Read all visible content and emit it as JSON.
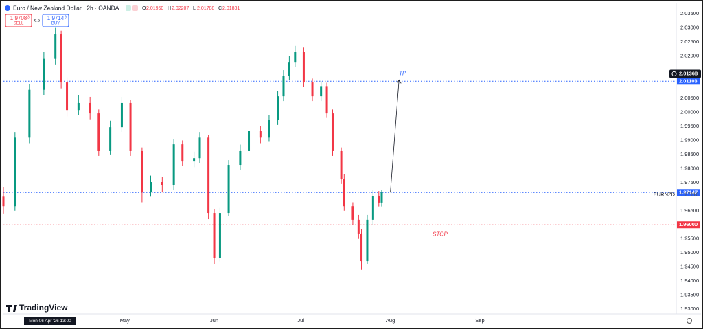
{
  "chart_data": {
    "type": "candlestick",
    "header": {
      "symbol": "Euro / New Zealand Dollar · 2h · OANDA",
      "ohlc": [
        {
          "key": "O",
          "value": "2.01950"
        },
        {
          "key": "H",
          "value": "2.02207"
        },
        {
          "key": "L",
          "value": "2.01788"
        },
        {
          "key": "C",
          "value": "2.01831"
        }
      ],
      "sell": {
        "price": "1.9708",
        "pip": "3",
        "label": "SELL"
      },
      "spread": "6.6",
      "buy": {
        "price": "1.9714",
        "pip": "9",
        "label": "BUY"
      }
    },
    "brand": "TradingView",
    "cursor_label": "Mon 06 Apr '26   13:00",
    "x": [
      -12,
      -8,
      -3,
      2,
      6,
      8,
      10,
      14,
      18,
      21,
      25,
      29,
      32,
      36,
      39,
      43,
      47,
      50,
      54,
      56,
      59,
      61,
      63,
      66,
      70,
      73,
      77,
      80,
      83,
      85,
      87,
      89,
      92,
      95,
      98,
      100,
      102,
      105,
      106,
      109,
      111,
      112,
      114,
      116,
      118,
      119
    ],
    "open": [
      1.97,
      1.9666,
      1.991,
      2.008,
      2.019,
      2.0277,
      2.0106,
      2.0008,
      2.0033,
      1.9996,
      1.9862,
      1.9947,
      2.0033,
      1.9862,
      1.9715,
      1.9752,
      1.974,
      1.9886,
      1.9825,
      1.9837,
      1.991,
      1.9642,
      1.9483,
      1.9642,
      1.9813,
      1.9862,
      1.9935,
      1.991,
      1.9972,
      2.0057,
      2.013,
      2.0179,
      2.0216,
      2.0106,
      2.0057,
      2.0093,
      1.9996,
      1.9862,
      1.9764,
      1.9666,
      1.9618,
      1.9569,
      1.9471,
      1.9618,
      1.9703,
      1.9679
    ],
    "high": [
      1.9735,
      1.993,
      2.01,
      2.0215,
      2.03,
      2.029,
      2.0125,
      2.006,
      2.0055,
      2.001,
      1.997,
      2.0055,
      2.0045,
      1.9875,
      1.9775,
      1.977,
      1.9905,
      1.99,
      1.986,
      1.993,
      1.992,
      1.9655,
      1.966,
      1.983,
      1.9885,
      1.9955,
      1.995,
      1.999,
      2.0075,
      2.015,
      2.02,
      2.0236,
      2.023,
      2.012,
      2.011,
      2.0105,
      2.001,
      1.9875,
      1.978,
      1.968,
      1.9635,
      1.9585,
      1.9635,
      1.9725,
      1.972,
      1.9725
    ],
    "low": [
      1.964,
      1.965,
      1.989,
      2.006,
      2.017,
      2.0085,
      1.9985,
      1.999,
      1.9975,
      1.9845,
      1.985,
      1.993,
      1.9845,
      1.968,
      1.97,
      1.9715,
      1.9725,
      1.981,
      1.9805,
      1.982,
      1.962,
      1.946,
      1.947,
      1.963,
      1.9795,
      1.9845,
      1.989,
      1.9895,
      1.9955,
      2.004,
      2.0115,
      2.016,
      2.009,
      2.004,
      2.004,
      1.998,
      1.9845,
      1.9745,
      1.965,
      1.96,
      1.955,
      1.944,
      1.946,
      1.96,
      1.9665,
      1.9665
    ],
    "close": [
      1.9666,
      1.991,
      2.008,
      2.019,
      2.0277,
      2.0106,
      2.0008,
      2.0033,
      1.9996,
      1.9862,
      1.9947,
      2.0033,
      1.9862,
      1.9715,
      1.9752,
      1.974,
      1.9886,
      1.9825,
      1.9837,
      1.991,
      1.9642,
      1.9483,
      1.9642,
      1.9813,
      1.9862,
      1.9935,
      1.991,
      1.9972,
      2.0057,
      2.013,
      2.0179,
      2.0216,
      2.0106,
      2.0057,
      2.0093,
      1.9996,
      1.9862,
      1.9764,
      1.9666,
      1.9618,
      1.9569,
      1.9471,
      1.9618,
      1.9703,
      1.9679,
      1.9715
    ],
    "up_color": "#089981",
    "down_color": "#f23645",
    "xlim": [
      -12,
      221
    ],
    "xticks": [
      {
        "value": 30,
        "label": "May"
      },
      {
        "value": 61,
        "label": "Jun"
      },
      {
        "value": 91,
        "label": "Jul"
      },
      {
        "value": 122,
        "label": "Aug"
      },
      {
        "value": 153,
        "label": "Sep"
      }
    ],
    "ylim": [
      1.9288,
      2.0387
    ],
    "yticks": [
      {
        "value": 2.035,
        "label": "2.03500"
      },
      {
        "value": 2.03,
        "label": "2.03000"
      },
      {
        "value": 2.025,
        "label": "2.02500"
      },
      {
        "value": 2.02,
        "label": "2.02000"
      },
      {
        "value": 2.005,
        "label": "2.00500"
      },
      {
        "value": 2.0,
        "label": "2.00000"
      },
      {
        "value": 1.995,
        "label": "1.99500"
      },
      {
        "value": 1.99,
        "label": "1.99000"
      },
      {
        "value": 1.985,
        "label": "1.98500"
      },
      {
        "value": 1.98,
        "label": "1.98000"
      },
      {
        "value": 1.975,
        "label": "1.97500"
      },
      {
        "value": 1.965,
        "label": "1.96500"
      },
      {
        "value": 1.955,
        "label": "1.95500"
      },
      {
        "value": 1.95,
        "label": "1.95000"
      },
      {
        "value": 1.945,
        "label": "1.94500"
      },
      {
        "value": 1.94,
        "label": "1.94000"
      },
      {
        "value": 1.935,
        "label": "1.93500"
      },
      {
        "value": 1.93,
        "label": "1.93000"
      }
    ],
    "grid": false,
    "levels": [
      {
        "value": 2.01103,
        "label": "2.01103",
        "color": "#2962ff"
      },
      {
        "value": 1.97147,
        "label": "1.97147",
        "color": "#2962ff"
      },
      {
        "value": 1.96,
        "label": "1.96000",
        "color": "#f23645"
      }
    ],
    "last_price": {
      "value": 2.01368,
      "label": "2.01368"
    },
    "symbol_price": {
      "value": 1.97116,
      "label": "1.97116",
      "name": "EURNZD"
    },
    "arrow": {
      "x": [
        122,
        125
      ],
      "y": [
        1.9715,
        2.0115
      ]
    },
    "annotations": [
      {
        "text": "TP",
        "color": "#2962ff"
      },
      {
        "text": "STOP",
        "color": "#f23645"
      }
    ]
  }
}
